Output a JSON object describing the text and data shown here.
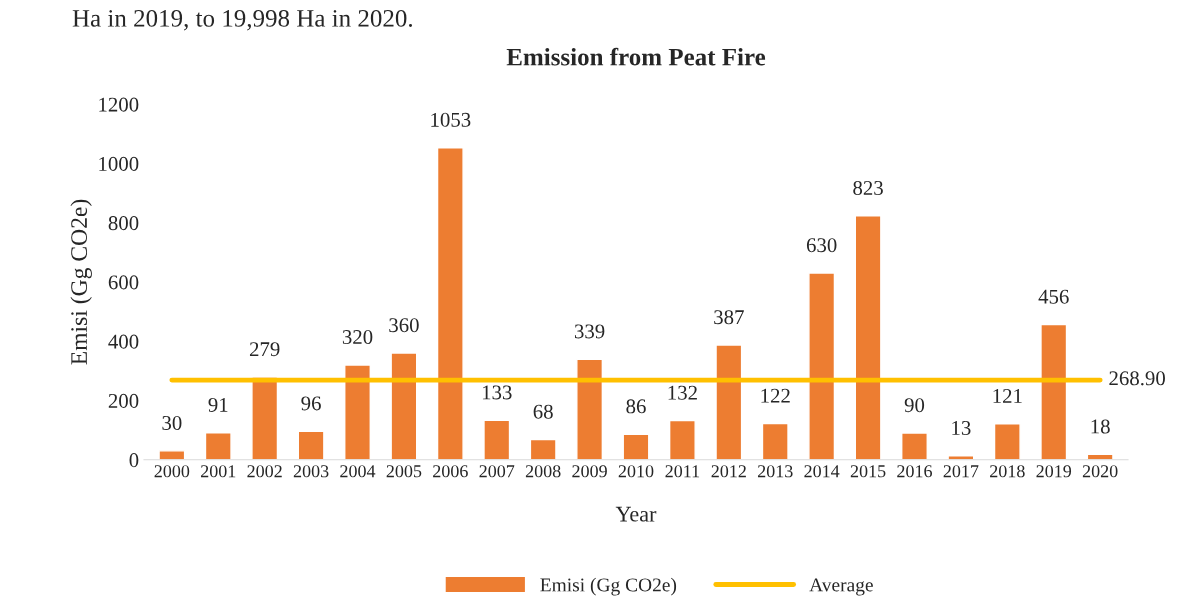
{
  "chart_data": {
    "type": "bar",
    "title": "Emission from Peat Fire",
    "xlabel": "Year",
    "ylabel": "Emisi (Gg CO2e)",
    "annotations": [
      "Ha in 2019, to 19,998 Ha in 2020."
    ],
    "categories": [
      "2000",
      "2001",
      "2002",
      "2003",
      "2004",
      "2005",
      "2006",
      "2007",
      "2008",
      "2009",
      "2010",
      "2011",
      "2012",
      "2013",
      "2014",
      "2015",
      "2016",
      "2017",
      "2018",
      "2019",
      "2020"
    ],
    "series": [
      {
        "name": "Emisi (Gg CO2e)",
        "color": "#ed7d31",
        "values": [
          30,
          91,
          279,
          96,
          320,
          360,
          1053,
          133,
          68,
          339,
          86,
          132,
          387,
          122,
          630,
          823,
          90,
          13,
          121,
          456,
          18
        ]
      },
      {
        "name": "Average",
        "type": "line",
        "color": "#ffc000",
        "values": [
          268.9,
          268.9,
          268.9,
          268.9,
          268.9,
          268.9,
          268.9,
          268.9,
          268.9,
          268.9,
          268.9,
          268.9,
          268.9,
          268.9,
          268.9,
          268.9,
          268.9,
          268.9,
          268.9,
          268.9,
          268.9
        ],
        "value_labels": [
          null,
          null,
          null,
          null,
          null,
          null,
          null,
          null,
          null,
          null,
          null,
          null,
          null,
          null,
          null,
          null,
          null,
          null,
          null,
          null,
          "268.90"
        ]
      }
    ],
    "data_labels": true,
    "ylim": [
      0,
      1200
    ],
    "yticks": [
      0,
      200,
      400,
      600,
      800,
      1000,
      1200
    ],
    "grid": false,
    "legend": "bottom",
    "marker": "none",
    "line_style": "solid"
  }
}
